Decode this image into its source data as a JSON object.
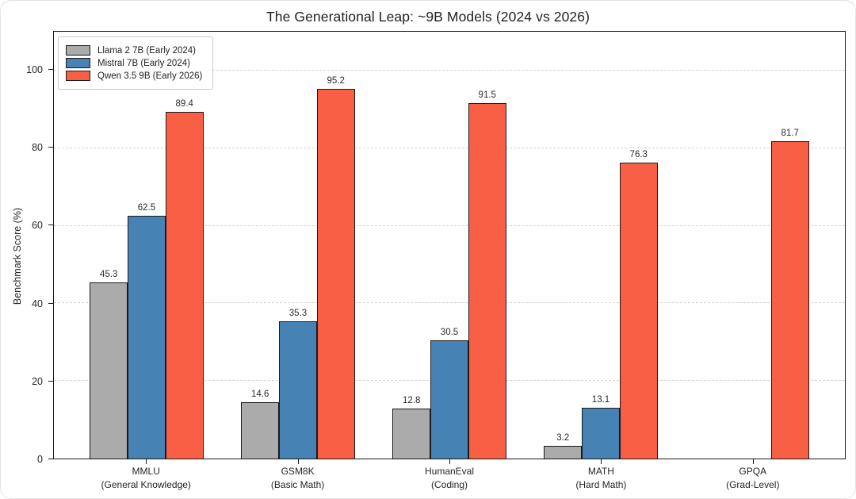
{
  "chart_data": {
    "type": "bar",
    "title": "The Generational Leap: ~9B Models (2024 vs 2026)",
    "xlabel": "",
    "ylabel": "Benchmark Score (%)",
    "ylim": [
      0,
      110
    ],
    "yticks": [
      0,
      20,
      40,
      60,
      80,
      100
    ],
    "grid": "horizontal-dashed",
    "legend_position": "upper-left",
    "categories": [
      {
        "label": "MMLU",
        "sublabel": "(General Knowledge)"
      },
      {
        "label": "GSM8K",
        "sublabel": "(Basic Math)"
      },
      {
        "label": "HumanEval",
        "sublabel": "(Coding)"
      },
      {
        "label": "MATH",
        "sublabel": "(Hard Math)"
      },
      {
        "label": "GPQA",
        "sublabel": "(Grad-Level)"
      }
    ],
    "series": [
      {
        "name": "Llama 2 7B (Early 2024)",
        "color": "#ababab",
        "values": [
          45.3,
          14.6,
          12.8,
          3.2,
          null
        ]
      },
      {
        "name": "Mistral 7B (Early 2024)",
        "color": "#4682b4",
        "values": [
          62.5,
          35.3,
          30.5,
          13.1,
          null
        ]
      },
      {
        "name": "Qwen 3.5 9B (Early 2026)",
        "color": "#f95f45",
        "values": [
          89.4,
          95.2,
          91.5,
          76.3,
          81.7
        ]
      }
    ],
    "bar_edge_color": "#1a1a1a",
    "gridline_color": "#d2d2d2"
  }
}
